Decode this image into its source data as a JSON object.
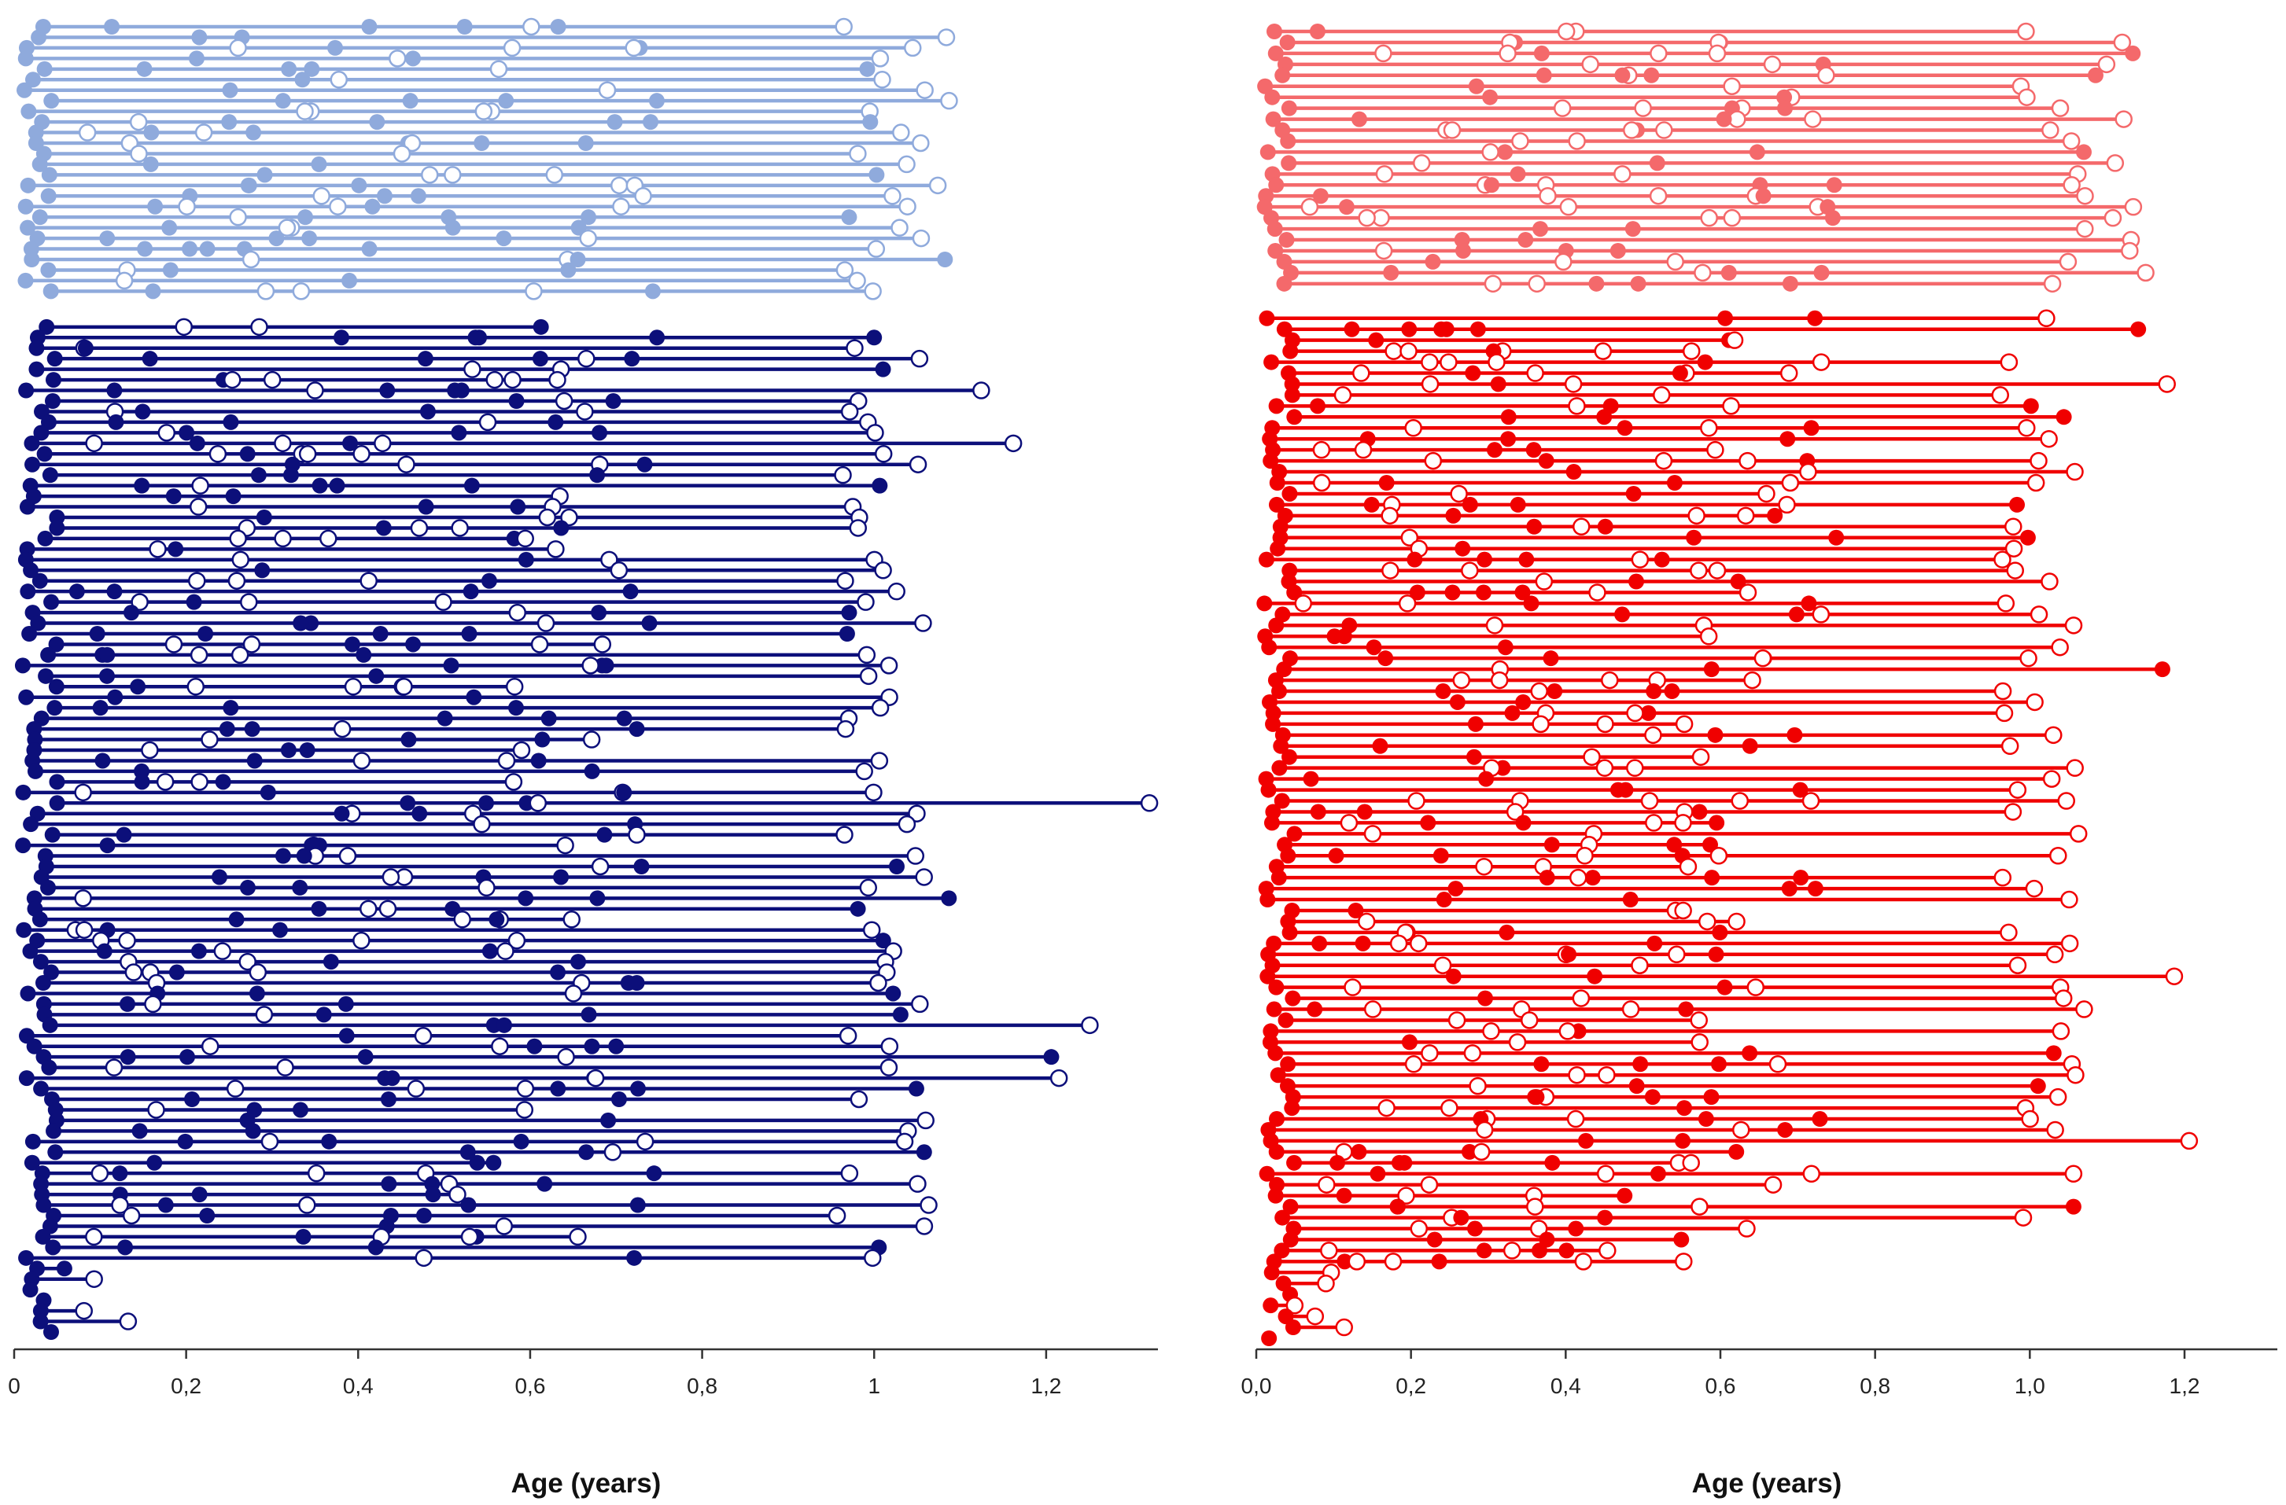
{
  "chart_data": [
    {
      "type": "timeline-dot-plot",
      "panel": "left",
      "xlabel": "Age (years)",
      "xlim": [
        0,
        1.33
      ],
      "x_tick_values": [
        0,
        0.2,
        0.4,
        0.6,
        0.8,
        1.0,
        1.2
      ],
      "x_tick_labels": [
        "0",
        "0,2",
        "0,4",
        "0,6",
        "0,8",
        "1",
        "1,2"
      ],
      "series": [
        {
          "name": "light-blue-group",
          "color": "#8faadc",
          "rows": 26,
          "row_end_age_range": [
            0.96,
            1.09
          ]
        },
        {
          "name": "dark-blue-group",
          "color": "#0c0f7a",
          "rows": 96,
          "row_end_age_range": [
            0.0,
            1.33
          ]
        }
      ]
    },
    {
      "type": "timeline-dot-plot",
      "panel": "right",
      "xlabel": "Age (years)",
      "xlim": [
        0,
        1.32
      ],
      "x_tick_values": [
        0.0,
        0.2,
        0.4,
        0.6,
        0.8,
        1.0,
        1.2
      ],
      "x_tick_labels": [
        "0,0",
        "0,2",
        "0,4",
        "0,6",
        "0,8",
        "1,0",
        "1,2"
      ],
      "series": [
        {
          "name": "salmon-group",
          "color": "#f4696b",
          "rows": 24,
          "row_end_age_range": [
            0.97,
            1.16
          ]
        },
        {
          "name": "red-group",
          "color": "#f00000",
          "rows": 94,
          "row_end_age_range": [
            0.0,
            1.25
          ]
        }
      ]
    }
  ]
}
